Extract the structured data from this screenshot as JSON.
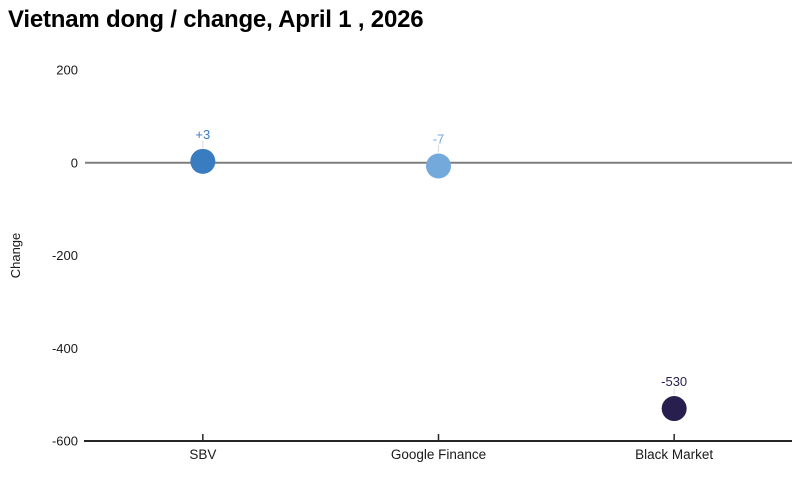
{
  "title": "Vietnam dong / change, April 1 , 2026",
  "chart_data": {
    "type": "scatter",
    "title": "Vietnam dong / change, April 1 , 2026",
    "categories": [
      "SBV",
      "Google Finance",
      "Black Market"
    ],
    "values": [
      3,
      -7,
      -530
    ],
    "point_labels": [
      "+3",
      "-7",
      "-530"
    ],
    "point_colors": [
      "#3a7cc0",
      "#74a9dc",
      "#291f4f"
    ],
    "xlabel": "",
    "ylabel": "Change",
    "ylim": [
      -600,
      200
    ],
    "yticks": [
      200,
      0,
      -200,
      -400,
      -600
    ],
    "grid": false,
    "legend": false,
    "zero_line": true,
    "colors": {
      "zero_line": "#7f7f7f",
      "axis_line": "#262626",
      "tick_text": "#1a1a1a",
      "leader_line": "#d9d9d9",
      "title_text": "#000000"
    }
  }
}
